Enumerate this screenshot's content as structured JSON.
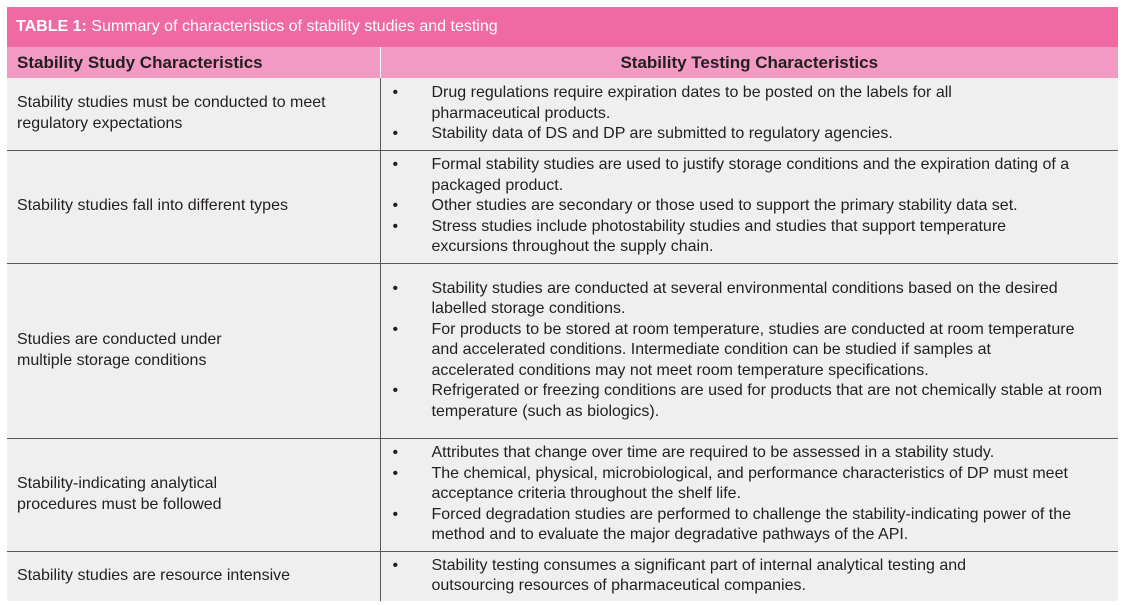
{
  "table": {
    "label": "TABLE 1:",
    "caption": "Summary of characteristics of stability studies and testing",
    "headers": [
      "Stability Study Characteristics",
      "Stability Testing Characteristics"
    ],
    "rows": [
      {
        "study": "Stability studies must be conducted to meet regulatory expectations",
        "testing": [
          "Drug regulations require expiration dates to be posted on the labels for all pharmaceutical products.",
          "Stability data of DS and DP are submitted to regulatory agencies."
        ]
      },
      {
        "study": "Stability studies fall into different types",
        "testing": [
          "Formal stability studies are used to justify storage conditions and the expiration dating of a packaged product.",
          "Other studies are secondary or those used to support the primary stability data set.",
          "Stress studies include photostability studies and studies that support temperature excursions throughout the supply chain."
        ]
      },
      {
        "study": "Studies are conducted under multiple storage conditions",
        "testing": [
          "Stability studies are conducted at several environmental conditions based on the desired labelled storage conditions.",
          "For products to be stored at room temperature, studies are conducted at room temperature and accelerated conditions. Intermediate condition can be studied if samples at accelerated conditions may not meet room temperature specifications.",
          "Refrigerated or freezing conditions are used for products that are not chemically stable at room temperature (such as biologics)."
        ]
      },
      {
        "study": "Stability-indicating analytical procedures must be followed",
        "testing": [
          "Attributes that change over time are required to be assessed in a stability study.",
          "The chemical, physical, microbiological, and performance characteristics of DP must meet acceptance criteria throughout the shelf life.",
          "Forced degradation studies are performed to challenge the stability-indicating power of the method and to evaluate the major degradative pathways of the API."
        ]
      },
      {
        "study": "Stability studies are resource intensive",
        "testing": [
          "Stability testing consumes a significant part of internal analytical testing and outsourcing resources of pharmaceutical companies."
        ]
      }
    ]
  }
}
